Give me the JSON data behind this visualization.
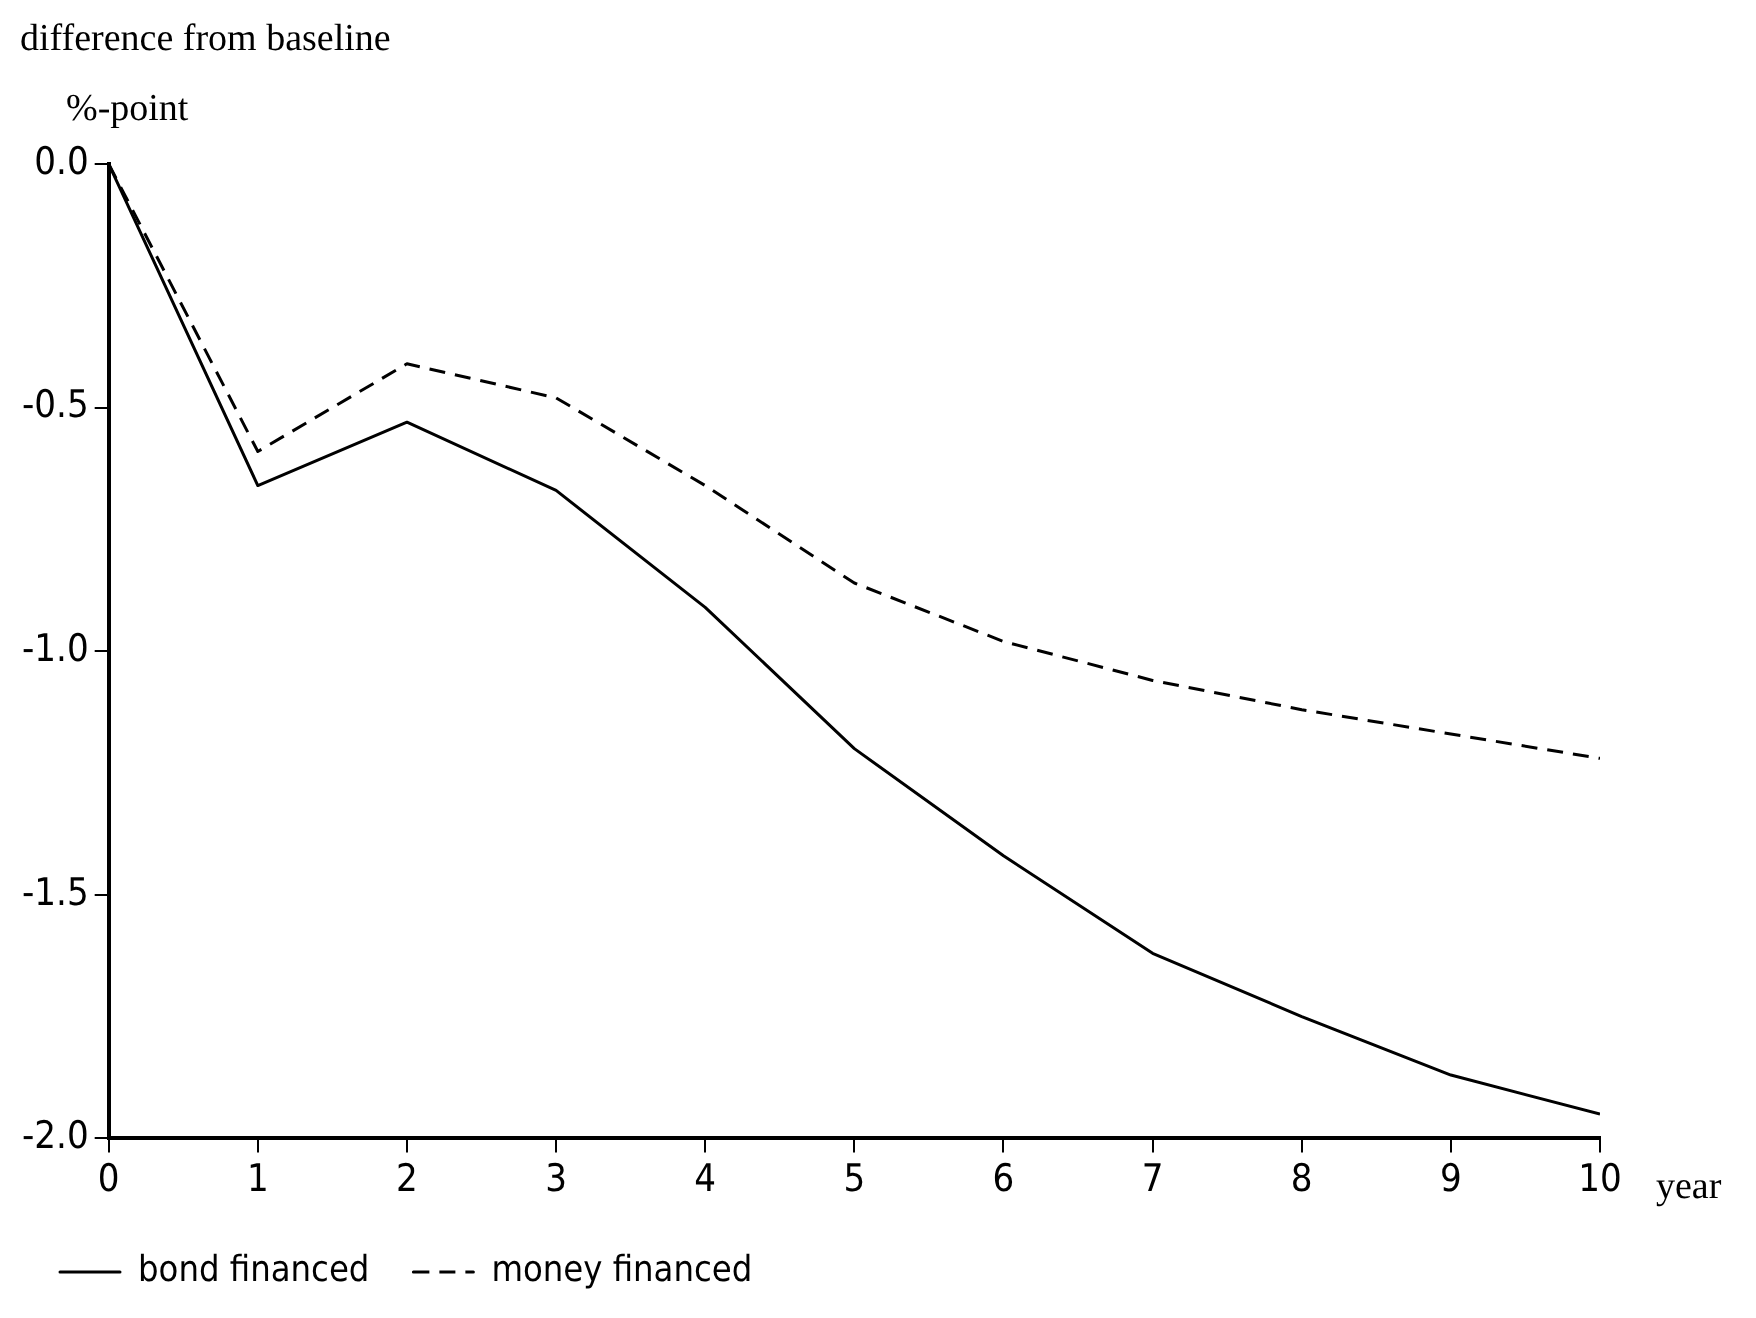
{
  "chart_data": {
    "type": "line",
    "title": "difference from baseline",
    "ylabel": "%-point",
    "xlabel": "year",
    "x": [
      0,
      1,
      2,
      3,
      4,
      5,
      6,
      7,
      8,
      9,
      10
    ],
    "series": [
      {
        "name": "bond financed",
        "color": "#000000",
        "line_style": "solid",
        "values": [
          0,
          -0.66,
          -0.53,
          -0.67,
          -0.91,
          -1.2,
          -1.42,
          -1.62,
          -1.75,
          -1.87,
          -1.95
        ]
      },
      {
        "name": "money financed",
        "color": "#000000",
        "line_style": "dashed",
        "values": [
          0,
          -0.59,
          -0.41,
          -0.48,
          -0.66,
          -0.86,
          -0.98,
          -1.06,
          -1.12,
          -1.17,
          -1.22
        ]
      }
    ],
    "xlim": [
      0,
      10
    ],
    "xticks": [
      0,
      1,
      2,
      3,
      4,
      5,
      6,
      7,
      8,
      9,
      10
    ],
    "ylim": [
      -2,
      0
    ],
    "yticks": [
      {
        "value": -2,
        "label": "-2.0"
      },
      {
        "value": -1.5,
        "label": "-1.5"
      },
      {
        "value": -1,
        "label": "-1.0"
      },
      {
        "value": -0.5,
        "label": "-0.5"
      },
      {
        "value": 0,
        "label": "0.0"
      }
    ],
    "grid": false,
    "legend": "bottom left",
    "marker": "none"
  }
}
